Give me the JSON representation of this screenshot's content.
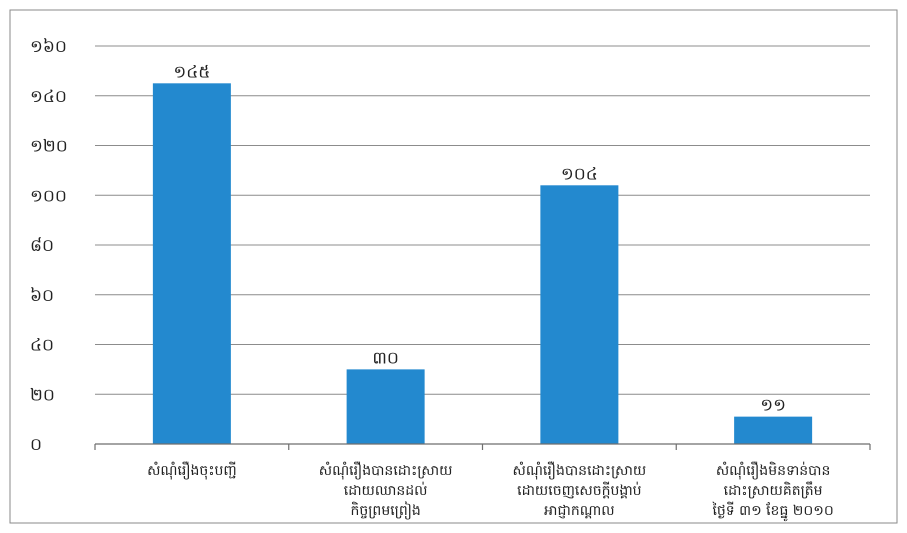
{
  "chart_data": {
    "type": "bar",
    "categories": [
      [
        "សំណុំរឿងចុះបញ្ជី"
      ],
      [
        "សំណុំរឿងបានដោះស្រាយ",
        "ដោយឈានដល់",
        "កិច្ចព្រមព្រៀង"
      ],
      [
        "សំណុំរឿងបានដោះស្រាយ",
        "ដោយចេញសេចក្តីបង្គាប់",
        "អាជ្ញាកណ្តាល"
      ],
      [
        "សំណុំរឿងមិនទាន់បាន",
        "ដោះស្រាយគិតត្រឹម",
        "ថ្ងៃទី ៣១ ខែធ្នូ ២០១០"
      ]
    ],
    "values": [
      145,
      30,
      104,
      11
    ],
    "value_labels": [
      "១៤៥",
      "៣០",
      "១០៤",
      "១១"
    ],
    "ylim": [
      0,
      160
    ],
    "y_ticks": [
      0,
      20,
      40,
      60,
      80,
      100,
      120,
      140,
      160
    ],
    "y_tick_labels": [
      "០",
      "២០",
      "៤០",
      "៦០",
      "៨០",
      "១០០",
      "១២០",
      "១៤០",
      "១៦០"
    ],
    "bar_color": "#2389cf",
    "grid": true,
    "title": "",
    "xlabel": "",
    "ylabel": ""
  }
}
